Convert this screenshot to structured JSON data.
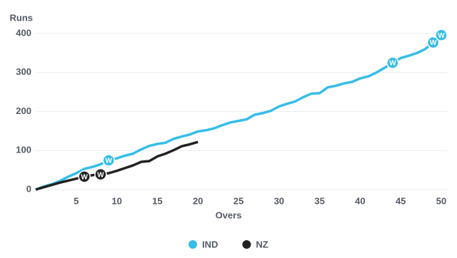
{
  "chart_data": {
    "type": "line",
    "y_label": "Runs",
    "x_label": "Overs",
    "x": [
      0,
      1,
      2,
      3,
      4,
      5,
      6,
      7,
      8,
      9,
      10,
      11,
      12,
      13,
      14,
      15,
      16,
      17,
      18,
      19,
      20,
      21,
      22,
      23,
      24,
      25,
      26,
      27,
      28,
      29,
      30,
      31,
      32,
      33,
      34,
      35,
      36,
      37,
      38,
      39,
      40,
      41,
      42,
      43,
      44,
      45,
      46,
      47,
      48,
      49,
      50
    ],
    "xlim": [
      0,
      50
    ],
    "xticks": [
      5,
      10,
      15,
      20,
      25,
      30,
      35,
      40,
      45,
      50
    ],
    "ylim": [
      0,
      400
    ],
    "yticks": [
      0,
      100,
      200,
      300,
      400
    ],
    "grid": true,
    "wicket_label": "W",
    "series": [
      {
        "name": "IND",
        "color": "#36bde8",
        "values": [
          0,
          8,
          14,
          22,
          33,
          42,
          53,
          58,
          65,
          75,
          80,
          87,
          92,
          103,
          112,
          117,
          120,
          130,
          136,
          141,
          149,
          152,
          157,
          165,
          172,
          176,
          180,
          192,
          196,
          202,
          213,
          220,
          226,
          237,
          246,
          247,
          262,
          266,
          272,
          276,
          285,
          290,
          300,
          312,
          325,
          337,
          343,
          350,
          360,
          377,
          396
        ],
        "wickets": [
          9,
          44,
          49,
          50
        ]
      },
      {
        "name": "NZ",
        "color": "#222222",
        "values": [
          0,
          6,
          12,
          18,
          23,
          28,
          33,
          37,
          39,
          42,
          48,
          55,
          62,
          71,
          73,
          85,
          92,
          101,
          111,
          116,
          122,
          null,
          null,
          null,
          null,
          null,
          null,
          null,
          null,
          null,
          null,
          null,
          null,
          null,
          null,
          null,
          null,
          null,
          null,
          null,
          null,
          null,
          null,
          null,
          null,
          null,
          null,
          null,
          null,
          null,
          null
        ],
        "wickets": [
          6,
          8
        ]
      }
    ],
    "legend": "bottom"
  }
}
